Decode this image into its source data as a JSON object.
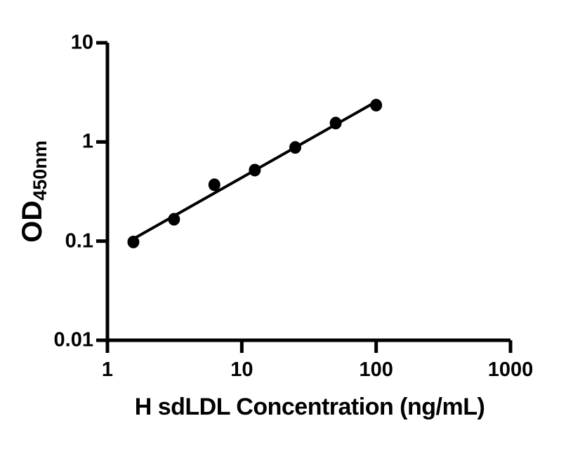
{
  "chart_data": {
    "type": "scatter",
    "description": "ELISA standard curve, log-log axes, black round markers with straight power-law fit line",
    "xlabel": "H sdLDL Concentration (ng/mL)",
    "ylabel_main": "OD",
    "ylabel_sub": "450nm",
    "x_scale": "log10",
    "y_scale": "log10",
    "xlim": [
      1,
      1000
    ],
    "ylim": [
      0.01,
      10
    ],
    "x_ticks": [
      1,
      10,
      100,
      1000
    ],
    "x_tick_labels": [
      "1",
      "10",
      "100",
      "1000"
    ],
    "y_ticks": [
      10,
      1,
      0.1,
      0.01
    ],
    "y_tick_labels": [
      "10",
      "1",
      "0.1",
      "0.01"
    ],
    "grid": false,
    "legend": false,
    "x": [
      1.56,
      3.13,
      6.25,
      12.5,
      25,
      50,
      100
    ],
    "y": [
      0.098,
      0.166,
      0.37,
      0.52,
      0.88,
      1.55,
      2.35
    ],
    "fit_line": "linear least-squares in log-log space, drawn from first to last data point",
    "marker_color": "#000000",
    "line_color": "#000000",
    "axis_color": "#000000",
    "background": "#ffffff"
  }
}
